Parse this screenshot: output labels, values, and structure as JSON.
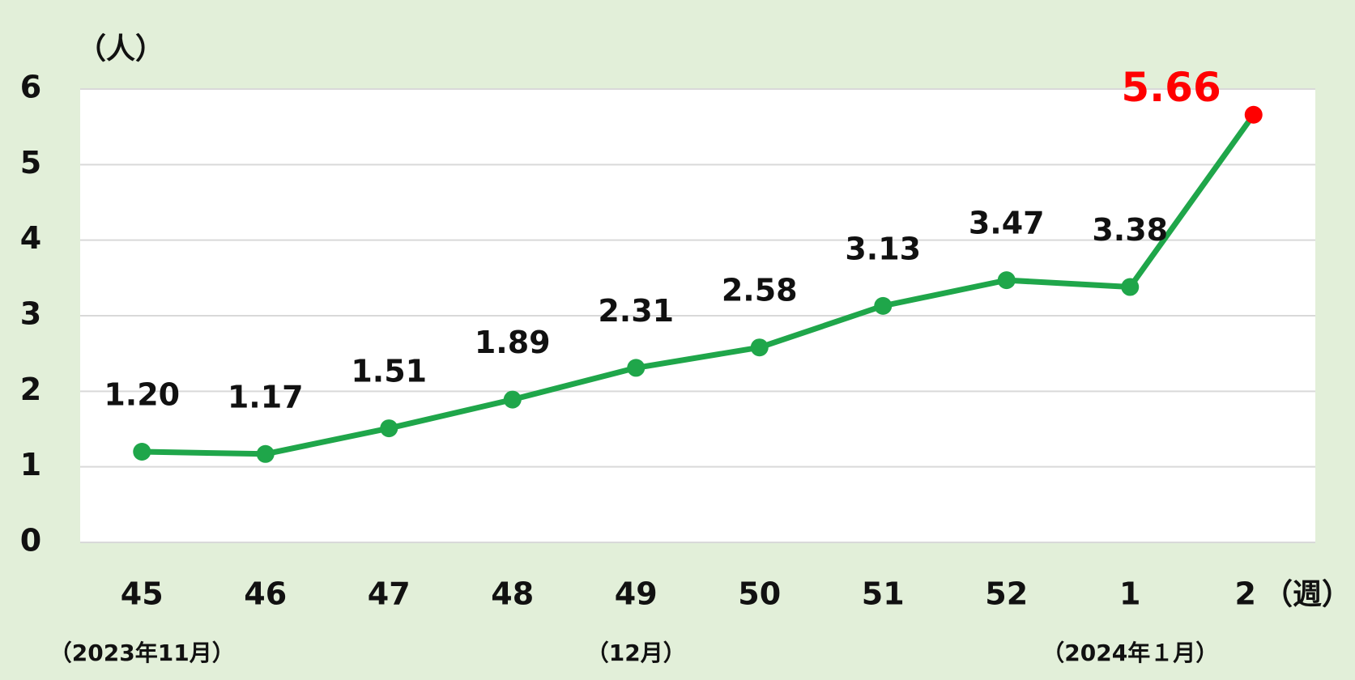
{
  "chart_data": {
    "type": "line",
    "y_unit": "（人）",
    "x_unit": "（週）",
    "categories": [
      "45",
      "46",
      "47",
      "48",
      "49",
      "50",
      "51",
      "52",
      "1",
      "2"
    ],
    "month_labels": [
      "（2023年11月）",
      null,
      null,
      null,
      "（12月）",
      null,
      null,
      null,
      "（2024年１月）",
      null
    ],
    "series": [
      {
        "color": "#1fa64a",
        "last_point_color": "#ff0000",
        "values": [
          1.2,
          1.17,
          1.51,
          1.89,
          2.31,
          2.58,
          3.13,
          3.47,
          3.38,
          5.66
        ],
        "value_labels": [
          "1.20",
          "1.17",
          "1.51",
          "1.89",
          "2.31",
          "2.58",
          "3.13",
          "3.47",
          "3.38",
          "5.66"
        ]
      }
    ],
    "ylim": [
      0,
      6
    ],
    "yticks": [
      0,
      1,
      2,
      3,
      4,
      5,
      6
    ],
    "grid": true
  }
}
